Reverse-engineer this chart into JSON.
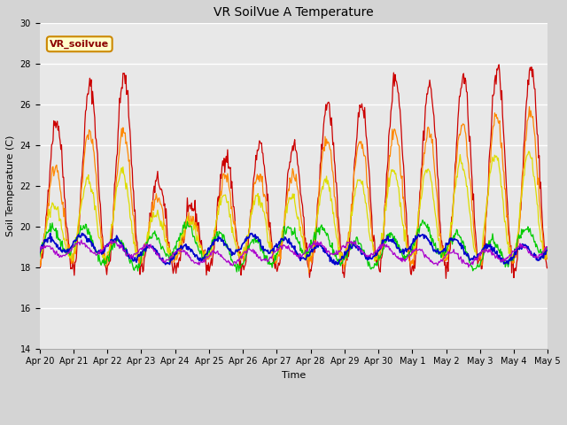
{
  "title": "VR SoilVue A Temperature",
  "xlabel": "Time",
  "ylabel": "Soil Temperature (C)",
  "ylim": [
    14,
    30
  ],
  "yticks": [
    14,
    16,
    18,
    20,
    22,
    24,
    26,
    28,
    30
  ],
  "fig_bg_color": "#d4d4d4",
  "plot_bg_color": "#e8e8e8",
  "series_colors": {
    "A-05_T": "#cc0000",
    "A-10_T": "#ff8800",
    "A-20_T": "#dddd00",
    "A-30_T": "#00cc00",
    "A-40_T": "#0000cc",
    "A-50_T": "#aa00cc"
  },
  "legend_label": "VR_soilvue",
  "legend_box_color": "#ffffcc",
  "legend_box_edge": "#cc8800",
  "n_days": 15,
  "points_per_day": 48,
  "x_tick_labels": [
    "Apr 20",
    "Apr 21",
    "Apr 22",
    "Apr 23",
    "Apr 24",
    "Apr 25",
    "Apr 26",
    "Apr 27",
    "Apr 28",
    "Apr 29",
    "Apr 30",
    "May 1",
    "May 2",
    "May 3",
    "May 4",
    "May 5"
  ],
  "title_fontsize": 10,
  "axis_label_fontsize": 8,
  "tick_fontsize": 7,
  "legend_fontsize": 8
}
